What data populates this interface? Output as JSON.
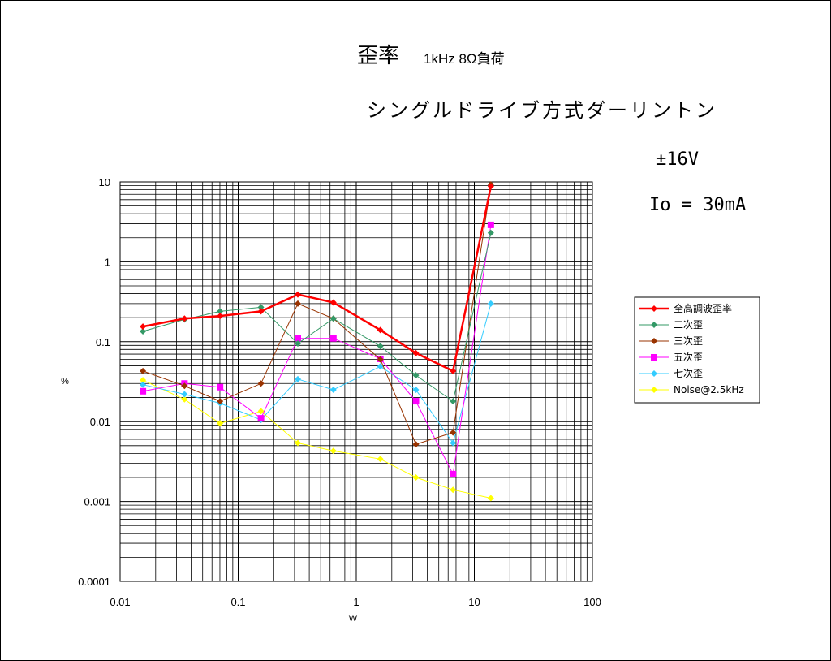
{
  "titles": {
    "main": "歪率",
    "sub": "1kHz 8Ω負荷",
    "circuit": "シングルドライブ方式ダーリントン",
    "condition_voltage": "±16V",
    "condition_current": "Io = 30mA"
  },
  "chart_data": {
    "type": "line",
    "xscale": "log",
    "yscale": "log",
    "xlim": [
      0.01,
      100
    ],
    "ylim": [
      0.0001,
      10
    ],
    "xlabel": "W",
    "ylabel": "%",
    "x_ticks": [
      "0.01",
      "0.1",
      "1",
      "10",
      "100"
    ],
    "y_ticks": [
      "10",
      "1",
      "0.1",
      "0.01",
      "0.001",
      "0.0001"
    ],
    "grid": true,
    "legend_position": "right",
    "series": [
      {
        "name": "全高調波歪率",
        "color": "#ff0000",
        "marker": "diamond",
        "bold": true,
        "x": [
          0.0156,
          0.0351,
          0.0702,
          0.156,
          0.32,
          0.64,
          1.6,
          3.2,
          6.6,
          13.8
        ],
        "y": [
          0.155,
          0.195,
          0.21,
          0.24,
          0.39,
          0.31,
          0.14,
          0.072,
          0.043,
          8.8
        ]
      },
      {
        "name": "二次歪",
        "color": "#339966",
        "marker": "diamond",
        "x": [
          0.0156,
          0.0351,
          0.0702,
          0.156,
          0.32,
          0.64,
          1.6,
          3.2,
          6.6,
          13.8
        ],
        "y": [
          0.135,
          0.19,
          0.24,
          0.27,
          0.095,
          0.195,
          0.088,
          0.038,
          0.018,
          2.3
        ]
      },
      {
        "name": "三次歪",
        "color": "#993300",
        "marker": "diamond",
        "x": [
          0.0156,
          0.0351,
          0.0702,
          0.156,
          0.32,
          0.64,
          1.6,
          3.2,
          6.6,
          13.8
        ],
        "y": [
          0.043,
          0.028,
          0.018,
          0.03,
          0.3,
          0.195,
          0.06,
          0.0052,
          0.0073,
          9.3
        ]
      },
      {
        "name": "五次歪",
        "color": "#ff00ff",
        "marker": "square",
        "x": [
          0.0156,
          0.0351,
          0.0702,
          0.156,
          0.32,
          0.64,
          1.6,
          3.2,
          6.6,
          13.8
        ],
        "y": [
          0.024,
          0.03,
          0.027,
          0.011,
          0.11,
          0.11,
          0.061,
          0.018,
          0.0022,
          2.9
        ]
      },
      {
        "name": "七次歪",
        "color": "#33ccff",
        "marker": "diamond",
        "x": [
          0.0156,
          0.0351,
          0.0702,
          0.156,
          0.32,
          0.64,
          1.6,
          3.2,
          6.6,
          13.8
        ],
        "y": [
          0.029,
          0.022,
          0.017,
          0.0105,
          0.034,
          0.025,
          0.049,
          0.025,
          0.0054,
          0.3
        ]
      },
      {
        "name": "Noise@2.5kHz",
        "color": "#ffff00",
        "marker": "diamond",
        "x": [
          0.0156,
          0.0351,
          0.0702,
          0.156,
          0.32,
          0.64,
          1.6,
          3.2,
          6.6,
          13.8
        ],
        "y": [
          0.033,
          0.019,
          0.0095,
          0.0135,
          0.0054,
          0.0043,
          0.0034,
          0.002,
          0.0014,
          0.0011
        ]
      }
    ]
  }
}
